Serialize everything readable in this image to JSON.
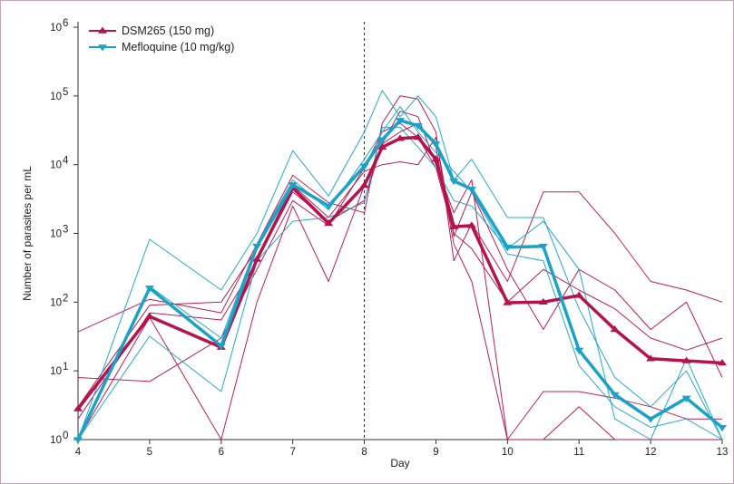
{
  "chart_data": {
    "type": "line",
    "xlabel": "Day",
    "ylabel": "Number of parasites per mL",
    "yscale": "log",
    "xlim": [
      4,
      13
    ],
    "ylim": [
      1,
      1000000
    ],
    "x_ticks": [
      4,
      5,
      6,
      7,
      8,
      9,
      10,
      11,
      12,
      13
    ],
    "y_ticks": [
      {
        "base": "10",
        "exp": "0",
        "value": 1
      },
      {
        "base": "10",
        "exp": "1",
        "value": 10
      },
      {
        "base": "10",
        "exp": "2",
        "value": 100
      },
      {
        "base": "10",
        "exp": "3",
        "value": 1000
      },
      {
        "base": "10",
        "exp": "4",
        "value": 10000
      },
      {
        "base": "10",
        "exp": "5",
        "value": 100000
      },
      {
        "base": "10",
        "exp": "6",
        "value": 1000000
      }
    ],
    "reference_line_x": 8,
    "legend_position": "top-left",
    "colors": {
      "dsm": "#b5134b",
      "mef": "#1aa3c6",
      "frame": "#c8a2b6",
      "axis": "#333333"
    },
    "series": [
      {
        "name": "DSM265 (150 mg)",
        "marker": "triangle-up",
        "x": [
          4,
          5,
          6,
          6.5,
          7,
          7.5,
          8,
          8.25,
          8.5,
          8.75,
          9,
          9.25,
          9.5,
          10,
          10.5,
          11,
          11.5,
          12,
          12.5,
          13
        ],
        "y": [
          2.8,
          62,
          22,
          420,
          4600,
          1400,
          5000,
          18000,
          24000,
          25000,
          12000,
          1250,
          1300,
          98,
          100,
          125,
          40,
          15,
          14,
          13
        ]
      },
      {
        "name": "Mefloquine (10 mg/kg)",
        "marker": "triangle-down",
        "x": [
          4,
          5,
          6,
          6.5,
          7,
          7.5,
          8,
          8.25,
          8.5,
          8.75,
          9,
          9.25,
          9.5,
          10,
          10.5,
          11,
          11.5,
          12,
          12.5,
          13
        ],
        "y": [
          1,
          160,
          23,
          650,
          5100,
          2500,
          9500,
          23000,
          44000,
          37000,
          20000,
          5800,
          4400,
          630,
          650,
          20,
          4.5,
          2,
          4,
          1.5
        ]
      }
    ],
    "individual_traces": [
      {
        "group": "dsm",
        "x": [
          4,
          5,
          6,
          6.5,
          7,
          7.5,
          8,
          8.25,
          8.5,
          8.75,
          9,
          9.25,
          9.5,
          10,
          10.5,
          11,
          11.5,
          12,
          12.5,
          13
        ],
        "y": [
          37,
          110,
          70,
          700,
          7000,
          2800,
          2000,
          40000,
          100000,
          90000,
          30000,
          400,
          1400,
          200,
          4000,
          4000,
          1000,
          200,
          150,
          100
        ]
      },
      {
        "group": "dsm",
        "x": [
          4,
          5,
          6,
          6.5,
          7,
          7.5,
          8,
          8.25,
          8.5,
          8.75,
          9,
          9.25,
          9.5,
          10,
          10.5,
          11,
          11.5,
          12,
          12.5,
          13
        ],
        "y": [
          8,
          7,
          30,
          300,
          3000,
          1300,
          9000,
          30000,
          40000,
          25000,
          9000,
          1000,
          600,
          100,
          300,
          150,
          80,
          30,
          20,
          30
        ]
      },
      {
        "group": "dsm",
        "x": [
          4,
          5,
          6,
          6.5,
          7,
          7.5,
          8,
          8.25,
          8.5,
          8.75,
          9,
          9.25,
          9.5,
          10,
          10.5,
          11,
          11.5,
          12,
          12.5,
          13
        ],
        "y": [
          1,
          60,
          1,
          100,
          2500,
          200,
          5000,
          20000,
          30000,
          40000,
          18000,
          700,
          200,
          1,
          1,
          3,
          1,
          1,
          1,
          1
        ]
      },
      {
        "group": "dsm",
        "x": [
          4,
          5,
          6,
          6.5,
          7,
          7.5,
          8,
          8.25,
          8.5,
          8.75,
          9,
          9.25,
          9.5,
          10,
          10.5,
          11,
          11.5,
          12,
          12.5,
          13
        ],
        "y": [
          3,
          90,
          100,
          600,
          5000,
          1700,
          8000,
          10000,
          11000,
          10000,
          25000,
          900,
          4000,
          300,
          40,
          300,
          150,
          40,
          100,
          8
        ]
      },
      {
        "group": "dsm",
        "x": [
          4,
          5,
          6,
          6.5,
          7,
          7.5,
          8,
          8.25,
          8.5,
          8.75,
          9,
          9.25,
          9.5,
          10,
          10.5,
          11,
          11.5,
          12,
          12.5,
          13
        ],
        "y": [
          2,
          70,
          55,
          400,
          4000,
          1500,
          3000,
          20000,
          60000,
          50000,
          10000,
          2000,
          6000,
          1,
          5,
          5,
          4,
          3,
          2,
          2
        ]
      },
      {
        "group": "mef",
        "x": [
          4,
          5,
          6,
          6.5,
          7,
          7.5,
          8,
          8.25,
          8.5,
          8.75,
          9,
          9.25,
          9.5,
          10,
          10.5,
          11,
          11.5,
          12,
          12.5,
          13
        ],
        "y": [
          1,
          820,
          150,
          1000,
          16000,
          3500,
          30000,
          120000,
          50000,
          100000,
          50000,
          6000,
          12000,
          1700,
          1700,
          80,
          8,
          3,
          10,
          1
        ]
      },
      {
        "group": "mef",
        "x": [
          4,
          5,
          6,
          6.5,
          7,
          7.5,
          8,
          8.25,
          8.5,
          8.75,
          9,
          9.25,
          9.5,
          10,
          10.5,
          11,
          11.5,
          12,
          12.5,
          13
        ],
        "y": [
          1,
          32,
          5,
          400,
          1500,
          1700,
          2800,
          35000,
          35000,
          18000,
          9000,
          3000,
          2500,
          600,
          1500,
          300,
          2,
          1,
          15,
          1
        ]
      },
      {
        "group": "mef",
        "x": [
          4,
          5,
          6,
          6.5,
          7,
          7.5,
          8,
          8.25,
          8.5,
          8.75,
          9,
          9.25,
          9.5,
          10,
          10.5,
          11,
          11.5,
          12,
          12.5,
          13
        ],
        "y": [
          1,
          170,
          30,
          700,
          6000,
          2200,
          12000,
          30000,
          70000,
          30000,
          15000,
          8000,
          4000,
          500,
          400,
          12,
          3,
          1.5,
          2,
          1
        ]
      }
    ]
  }
}
